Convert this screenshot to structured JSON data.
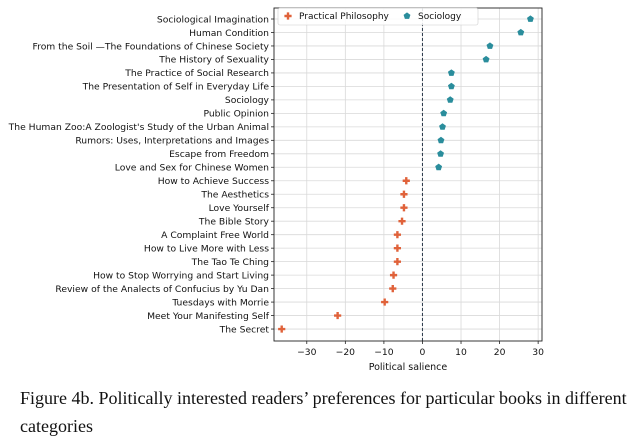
{
  "caption": {
    "line1": "Figure 4b.  Politically interested readers’ preferences for particular books in different",
    "line2": "categories"
  },
  "chart_data": {
    "type": "scatter",
    "orientation": "horizontal",
    "xlabel": "Political salience",
    "ylabel": "",
    "title": "",
    "xlim": [
      -38.5,
      31
    ],
    "xticks": [
      -30,
      -20,
      -10,
      0,
      10,
      20,
      30
    ],
    "xtick_labels": [
      "−30",
      "−20",
      "−10",
      "0",
      "10",
      "20",
      "30"
    ],
    "zero_line": 0,
    "grid": true,
    "legend": {
      "placement": "top",
      "entries": [
        {
          "name": "Practical Philosophy",
          "marker": "plus",
          "color": "#e0623a"
        },
        {
          "name": "Sociology",
          "marker": "pentagon",
          "color": "#2a8d9c"
        }
      ]
    },
    "categories": [
      "Sociological Imagination",
      "Human Condition",
      "From the Soil —The Foundations of Chinese Society",
      "The History of Sexuality",
      "The Practice of Social Research",
      "The Presentation of Self in Everyday Life",
      "Sociology",
      "Public Opinion",
      "The Human Zoo:A Zoologist's Study of the Urban Animal",
      "Rumors: Uses, Interpretations and Images",
      "Escape from Freedom",
      "Love and Sex for Chinese Women",
      "How to Achieve Success",
      "The Aesthetics",
      "Love Yourself",
      "The Bible Story",
      "A Complaint Free World",
      "How to Live More with Less",
      "The Tao Te Ching",
      "How to Stop Worrying and Start Living",
      "Review of the Analects of Confucius by Yu Dan",
      "Tuesdays with Morrie",
      "Meet Your Manifesting Self",
      "The Secret"
    ],
    "series": [
      {
        "name": "Sociology",
        "color": "#2a8d9c",
        "marker": "pentagon",
        "points": [
          {
            "category": "Sociological Imagination",
            "x": 28.0
          },
          {
            "category": "Human Condition",
            "x": 25.5
          },
          {
            "category": "From the Soil —The Foundations of Chinese Society",
            "x": 17.5
          },
          {
            "category": "The History of Sexuality",
            "x": 16.5
          },
          {
            "category": "The Practice of Social Research",
            "x": 7.5
          },
          {
            "category": "The Presentation of Self in Everyday Life",
            "x": 7.5
          },
          {
            "category": "Sociology",
            "x": 7.2
          },
          {
            "category": "Public Opinion",
            "x": 5.5
          },
          {
            "category": "The Human Zoo:A Zoologist's Study of the Urban Animal",
            "x": 5.2
          },
          {
            "category": "Rumors: Uses, Interpretations and Images",
            "x": 4.8
          },
          {
            "category": "Escape from Freedom",
            "x": 4.7
          },
          {
            "category": "Love and Sex for Chinese Women",
            "x": 4.2
          }
        ]
      },
      {
        "name": "Practical Philosophy",
        "color": "#e0623a",
        "marker": "plus",
        "points": [
          {
            "category": "How to Achieve Success",
            "x": -4.2
          },
          {
            "category": "The Aesthetics",
            "x": -4.8
          },
          {
            "category": "Love Yourself",
            "x": -4.8
          },
          {
            "category": "The Bible Story",
            "x": -5.3
          },
          {
            "category": "A Complaint Free World",
            "x": -6.5
          },
          {
            "category": "How to Live More with Less",
            "x": -6.5
          },
          {
            "category": "The Tao Te Ching",
            "x": -6.5
          },
          {
            "category": "How to Stop Worrying and Start Living",
            "x": -7.5
          },
          {
            "category": "Review of the Analects of Confucius by Yu Dan",
            "x": -7.7
          },
          {
            "category": "Tuesdays with Morrie",
            "x": -9.8
          },
          {
            "category": "Meet Your Manifesting Self",
            "x": -22.0
          },
          {
            "category": "The Secret",
            "x": -36.5
          }
        ]
      }
    ]
  }
}
